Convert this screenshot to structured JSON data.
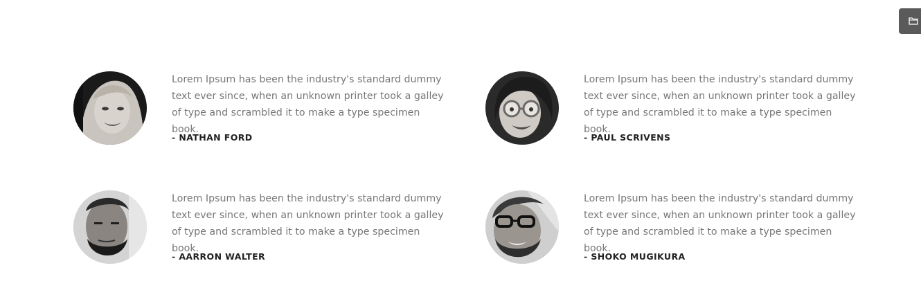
{
  "testimonials": [
    {
      "quote": "Lorem Ipsum has been the industry's standard dummy text ever since, when an unknown printer took a galley of type and scrambled it to make a type specimen book.",
      "author": "- NATHAN FORD"
    },
    {
      "quote": "Lorem Ipsum has been the industry's standard dummy text ever since, when an unknown printer took a galley of type and scrambled it to make a type specimen book.",
      "author": "- PAUL SCRIVENS"
    },
    {
      "quote": "Lorem Ipsum has been the industry's standard dummy text ever since, when an unknown printer took a galley of type and scrambled it to make a type specimen book.",
      "author": "- AARRON WALTER"
    },
    {
      "quote": "Lorem Ipsum has been the industry's standard dummy text ever since, when an unknown printer took a galley of type and scrambled it to make a type specimen book.",
      "author": "- SHOKO MUGIKURA"
    }
  ],
  "side_panel": {
    "icon": "folder-icon"
  },
  "colors": {
    "quote_text": "#777777",
    "author_text": "#222222",
    "side_tab_bg": "#5a5a5a"
  }
}
